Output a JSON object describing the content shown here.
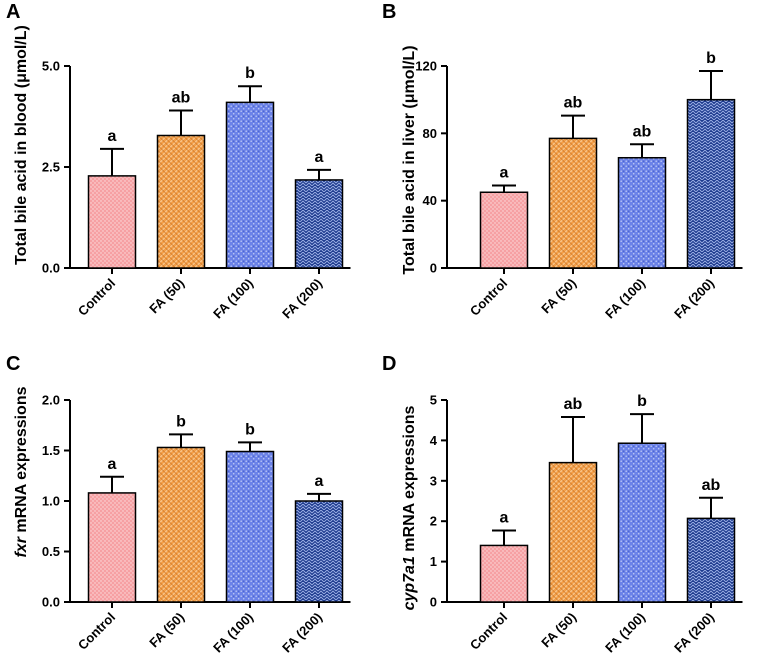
{
  "chart_data": [
    {
      "panel": "A",
      "type": "bar",
      "ylabel": "Total bile acid in blood (μmol/L)",
      "ylabel_italic_part": "",
      "ylabel_rest": "",
      "categories": [
        "Control",
        "FA (50)",
        "FA (100)",
        "FA (200)"
      ],
      "values": [
        2.28,
        3.28,
        4.1,
        2.18
      ],
      "errors": [
        0.67,
        0.62,
        0.4,
        0.25
      ],
      "labels": [
        "a",
        "ab",
        "b",
        "a"
      ],
      "ylim": [
        0,
        5.0
      ],
      "yticks": [
        "0.0",
        "2.5",
        "5.0"
      ],
      "ytick_values": [
        0,
        2.5,
        5.0
      ]
    },
    {
      "panel": "B",
      "type": "bar",
      "ylabel": "Total bile acid in liver (μmol/L)",
      "ylabel_italic_part": "",
      "ylabel_rest": "",
      "categories": [
        "Control",
        "FA (50)",
        "FA (100)",
        "FA (200)"
      ],
      "values": [
        45,
        77,
        65.5,
        100
      ],
      "errors": [
        4,
        13.5,
        8,
        17
      ],
      "labels": [
        "a",
        "ab",
        "ab",
        "b"
      ],
      "ylim": [
        0,
        120
      ],
      "yticks": [
        "0",
        "40",
        "80",
        "120"
      ],
      "ytick_values": [
        0,
        40,
        80,
        120
      ]
    },
    {
      "panel": "C",
      "type": "bar",
      "ylabel": "",
      "ylabel_italic_part": "fxr",
      "ylabel_rest": " mRNA expressions",
      "categories": [
        "Control",
        "FA (50)",
        "FA (100)",
        "FA (200)"
      ],
      "values": [
        1.08,
        1.53,
        1.49,
        1.0
      ],
      "errors": [
        0.16,
        0.13,
        0.09,
        0.07
      ],
      "labels": [
        "a",
        "b",
        "b",
        "a"
      ],
      "ylim": [
        0,
        2.0
      ],
      "yticks": [
        "0.0",
        "0.5",
        "1.0",
        "1.5",
        "2.0"
      ],
      "ytick_values": [
        0,
        0.5,
        1.0,
        1.5,
        2.0
      ]
    },
    {
      "panel": "D",
      "type": "bar",
      "ylabel": "",
      "ylabel_italic_part": "cyp7a1",
      "ylabel_rest": " mRNA expressions",
      "categories": [
        "Control",
        "FA (50)",
        "FA (100)",
        "FA (200)"
      ],
      "values": [
        1.4,
        3.45,
        3.93,
        2.07
      ],
      "errors": [
        0.37,
        1.13,
        0.72,
        0.51
      ],
      "labels": [
        "a",
        "ab",
        "b",
        "ab"
      ],
      "ylim": [
        0,
        5
      ],
      "yticks": [
        "0",
        "1",
        "2",
        "3",
        "4",
        "5"
      ],
      "ytick_values": [
        0,
        1,
        2,
        3,
        4,
        5
      ]
    }
  ],
  "colors": {
    "control": "#f8a0a0",
    "fa50": "#f4a04c",
    "fa100": "#6a83e6",
    "fa200": "#1f3c8f"
  }
}
